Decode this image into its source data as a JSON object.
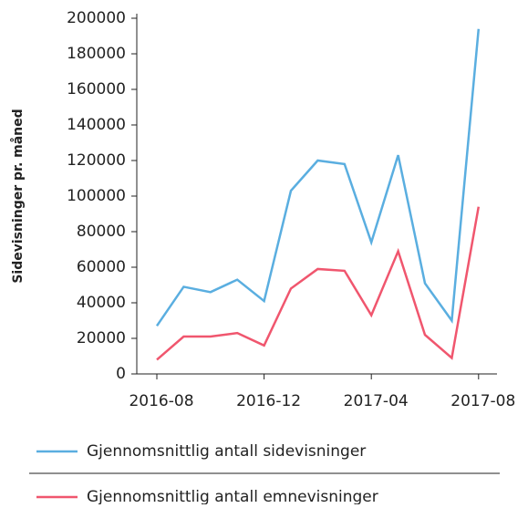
{
  "chart_data": {
    "type": "line",
    "y_label": "Sidevisninger pr. måned",
    "x": [
      "2016-08",
      "2016-09",
      "2016-10",
      "2016-11",
      "2016-12",
      "2017-01",
      "2017-02",
      "2017-03",
      "2017-04",
      "2017-05",
      "2017-06",
      "2017-07",
      "2017-08"
    ],
    "xticks": [
      "2016-08",
      "2016-12",
      "2017-04",
      "2017-08"
    ],
    "series": [
      {
        "name": "Gjennomsnittlig antall sidevisninger",
        "color": "#5aaee0",
        "values": [
          27000,
          49000,
          46000,
          53000,
          41000,
          103000,
          120000,
          118000,
          74000,
          123000,
          51000,
          30000,
          194000
        ]
      },
      {
        "name": "Gjennomsnittlig antall emnevisninger",
        "color": "#f0566e",
        "values": [
          8000,
          21000,
          21000,
          23000,
          16000,
          48000,
          59000,
          58000,
          33000,
          69000,
          22000,
          9000,
          94000
        ]
      }
    ],
    "ylim": [
      0,
      200000
    ],
    "yticks": [
      0,
      20000,
      40000,
      60000,
      80000,
      100000,
      120000,
      140000,
      160000,
      180000,
      200000
    ]
  }
}
